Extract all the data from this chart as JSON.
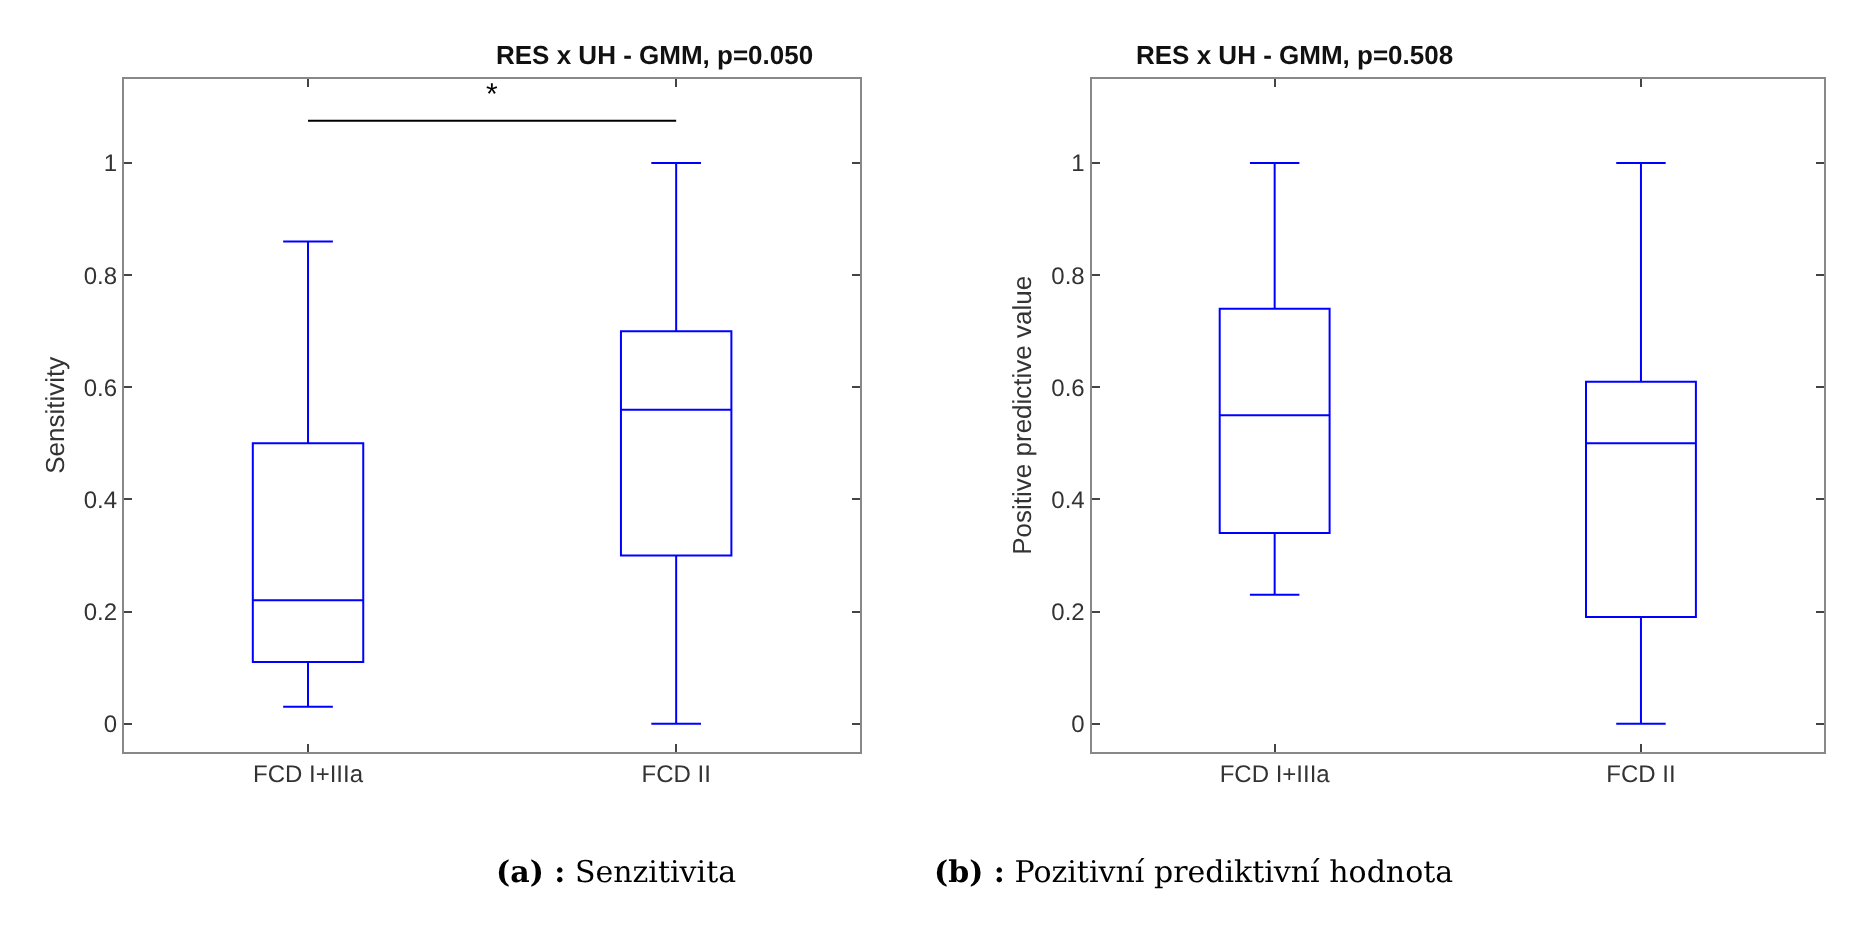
{
  "chart_data": [
    {
      "type": "box",
      "title": "RES x UH - GMM, p=0.050",
      "ylabel": "Sensitivity",
      "categories": [
        "FCD I+IIIa",
        "FCD II"
      ],
      "ylim": [
        -0.05,
        1.15
      ],
      "yticks": [
        0,
        0.2,
        0.4,
        0.6,
        0.8,
        1
      ],
      "series": [
        {
          "color": "#0000ff",
          "boxes": [
            {
              "low": 0.03,
              "q1": 0.11,
              "median": 0.22,
              "q3": 0.5,
              "high": 0.86
            },
            {
              "low": 0,
              "q1": 0.3,
              "median": 0.56,
              "q3": 0.7,
              "high": 1
            }
          ]
        }
      ],
      "annotations": [
        "*",
        "(a) : Senzitivita"
      ]
    },
    {
      "type": "box",
      "title": "RES x UH - GMM, p=0.508",
      "ylabel": "Positive predictive value",
      "categories": [
        "FCD I+IIIa",
        "FCD II"
      ],
      "ylim": [
        -0.05,
        1.15
      ],
      "yticks": [
        0,
        0.2,
        0.4,
        0.6,
        0.8,
        1
      ],
      "series": [
        {
          "color": "#0000ff",
          "boxes": [
            {
              "low": 0.23,
              "q1": 0.34,
              "median": 0.55,
              "q3": 0.74,
              "high": 1
            },
            {
              "low": 0,
              "q1": 0.19,
              "median": 0.5,
              "q3": 0.61,
              "high": 1
            }
          ]
        }
      ],
      "annotations": [
        "(b) : Pozitivní prediktivní hodnota"
      ]
    }
  ]
}
